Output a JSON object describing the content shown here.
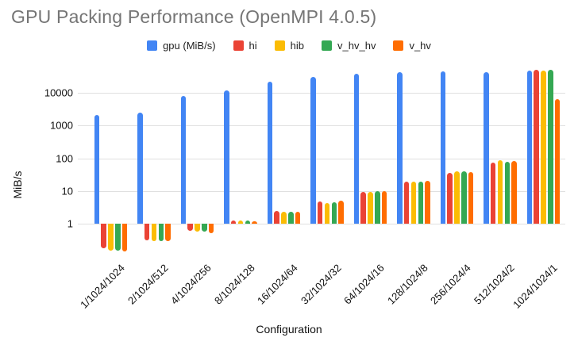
{
  "title": "GPU Packing Performance (OpenMPI 4.0.5)",
  "chart_data": {
    "type": "bar",
    "title": "GPU Packing Performance (OpenMPI 4.0.5)",
    "xlabel": "Configuration",
    "ylabel": "MiB/s",
    "y_scale": "log",
    "baseline": 1,
    "ylim": [
      0.13,
      60000
    ],
    "y_ticks": [
      1,
      10,
      100,
      1000,
      10000
    ],
    "grid": true,
    "legend_position": "top",
    "title_color": "#757575",
    "gridline_color": "#e0e0e0",
    "categories": [
      "1/1024/1024",
      "2/1024/512",
      "4/1024/256",
      "8/1024/128",
      "16/1024/64",
      "32/1024/32",
      "64/1024/16",
      "128/1024/8",
      "256/1024/4",
      "512/1024/2",
      "1024/1024/1"
    ],
    "series": [
      {
        "name": "gpu (MiB/s)",
        "color": "#4285F4",
        "values": [
          2100,
          2450,
          8000,
          12000,
          22000,
          30500,
          38000,
          42000,
          45000,
          42000,
          48000
        ]
      },
      {
        "name": "hi",
        "color": "#EA4335",
        "values": [
          0.18,
          0.32,
          0.6,
          1.3,
          2.5,
          4.8,
          9.6,
          19.5,
          37,
          76,
          52000
        ]
      },
      {
        "name": "hib",
        "color": "#FBBC04",
        "values": [
          0.155,
          0.3,
          0.58,
          1.25,
          2.4,
          4.4,
          9.6,
          20,
          40,
          86,
          48000
        ]
      },
      {
        "name": "v_hv_hv",
        "color": "#34A853",
        "values": [
          0.15,
          0.3,
          0.58,
          1.25,
          2.4,
          4.6,
          9.8,
          19.5,
          40,
          80,
          52000
        ]
      },
      {
        "name": "v_hv",
        "color": "#FF6D01",
        "values": [
          0.145,
          0.29,
          0.52,
          1.2,
          2.4,
          5.0,
          10,
          21,
          38,
          83,
          6300
        ]
      }
    ]
  }
}
